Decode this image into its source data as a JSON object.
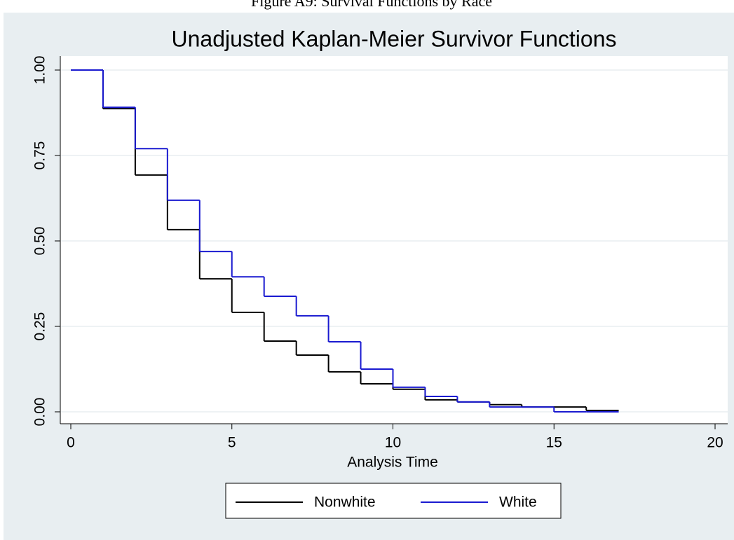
{
  "chart_data": {
    "type": "step",
    "caption": "Figure A9: Survival Functions by Race",
    "title": "Unadjusted Kaplan-Meier Survivor Functions",
    "x_label": "Analysis Time",
    "x": [
      0,
      1,
      2,
      3,
      4,
      5,
      6,
      7,
      8,
      9,
      10,
      11,
      12,
      13,
      14,
      15,
      16,
      17
    ],
    "series": [
      {
        "name": "Nonwhite",
        "color": "#000000",
        "values": [
          1.0,
          0.887,
          0.693,
          0.533,
          0.389,
          0.291,
          0.207,
          0.166,
          0.117,
          0.082,
          0.066,
          0.035,
          0.029,
          0.021,
          0.014,
          0.014,
          0.004,
          0.004
        ]
      },
      {
        "name": "White",
        "color": "#1a1ad0",
        "values": [
          1.0,
          0.891,
          0.77,
          0.619,
          0.469,
          0.395,
          0.338,
          0.281,
          0.205,
          0.125,
          0.072,
          0.045,
          0.029,
          0.014,
          0.014,
          0.0,
          0.0,
          0.0
        ]
      }
    ],
    "xlim": [
      0,
      20
    ],
    "xticks": [
      0,
      5,
      10,
      15,
      20
    ],
    "ylim": [
      0,
      1
    ],
    "yticks": [
      {
        "value": 0,
        "label": "0.00"
      },
      {
        "value": 0.25,
        "label": "0.25"
      },
      {
        "value": 0.5,
        "label": "0.50"
      },
      {
        "value": 0.75,
        "label": "0.75"
      },
      {
        "value": 1,
        "label": "1.00"
      }
    ],
    "grid": true,
    "legend": "bottom"
  }
}
